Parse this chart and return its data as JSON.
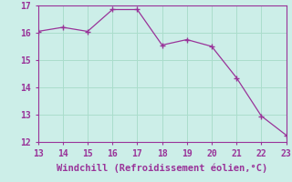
{
  "x": [
    13,
    14,
    15,
    16,
    17,
    18,
    19,
    20,
    21,
    22,
    23
  ],
  "y": [
    16.05,
    16.2,
    16.05,
    16.85,
    16.85,
    15.55,
    15.75,
    15.5,
    14.35,
    12.95,
    12.25
  ],
  "xlim": [
    13,
    23
  ],
  "ylim": [
    12,
    17
  ],
  "xticks": [
    13,
    14,
    15,
    16,
    17,
    18,
    19,
    20,
    21,
    22,
    23
  ],
  "yticks": [
    12,
    13,
    14,
    15,
    16,
    17
  ],
  "xlabel": "Windchill (Refroidissement éolien,°C)",
  "line_color": "#993399",
  "background_color": "#cceee8",
  "grid_color": "#aaddcc",
  "tick_color": "#993399",
  "label_color": "#993399",
  "tick_fontsize": 7,
  "xlabel_fontsize": 7.5
}
